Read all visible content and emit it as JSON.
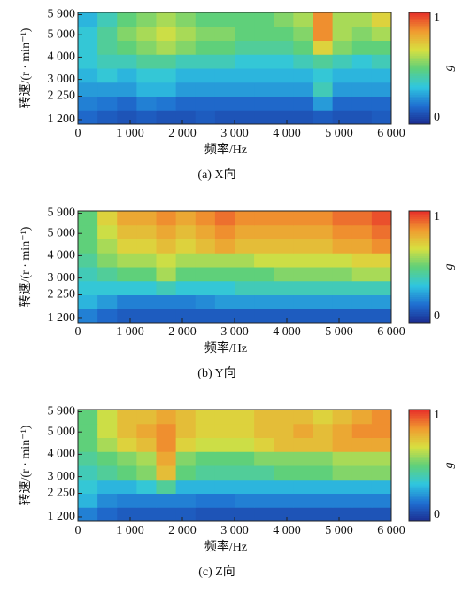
{
  "chart_data": [
    {
      "type": "heatmap",
      "caption": "(a) X向",
      "xlabel": "频率/Hz",
      "ylabel": "转速/(r · min⁻¹)",
      "zlabel": "g",
      "xlim": [
        0,
        6000
      ],
      "xticks": [
        0,
        {
          "value": 1000,
          "label": "1 000"
        },
        {
          "value": 2000,
          "label": "2 000"
        },
        {
          "value": 3000,
          "label": "3 000"
        },
        {
          "value": 4000,
          "label": "4 000"
        },
        {
          "value": 5000,
          "label": "5 000"
        },
        {
          "value": 6000,
          "label": "6 000"
        }
      ],
      "ylim": [
        1000,
        6000
      ],
      "yticks": [
        {
          "value": 1200,
          "label": "1 200"
        },
        {
          "value": 2250,
          "label": "2 250"
        },
        {
          "value": 3000,
          "label": "3 000"
        },
        {
          "value": 4000,
          "label": "4 000"
        },
        {
          "value": 5000,
          "label": "5 000"
        },
        {
          "value": 5900,
          "label": "5 900"
        }
      ],
      "zlim": [
        0,
        1
      ],
      "zticks": [
        0,
        1
      ],
      "colormap": [
        "#1c2b8f",
        "#1f6fd1",
        "#2fc6e0",
        "#5fd07a",
        "#d8e040",
        "#f09a30",
        "#e8302a"
      ],
      "x_edges": [
        0,
        375,
        750,
        1125,
        1500,
        1875,
        2250,
        2625,
        3000,
        3375,
        3750,
        4125,
        4500,
        4875,
        5250,
        5625,
        6000
      ],
      "y_edges": [
        1000,
        1625,
        2250,
        2875,
        3500,
        4125,
        4750,
        5375,
        6000
      ],
      "z": [
        [
          0.15,
          0.12,
          0.1,
          0.12,
          0.1,
          0.1,
          0.12,
          0.1,
          0.1,
          0.1,
          0.1,
          0.1,
          0.12,
          0.1,
          0.1,
          0.12
        ],
        [
          0.2,
          0.18,
          0.15,
          0.2,
          0.18,
          0.15,
          0.15,
          0.15,
          0.15,
          0.15,
          0.15,
          0.15,
          0.25,
          0.15,
          0.15,
          0.15
        ],
        [
          0.25,
          0.25,
          0.25,
          0.3,
          0.3,
          0.25,
          0.25,
          0.25,
          0.25,
          0.25,
          0.25,
          0.25,
          0.4,
          0.25,
          0.25,
          0.25
        ],
        [
          0.3,
          0.35,
          0.3,
          0.35,
          0.35,
          0.3,
          0.3,
          0.3,
          0.3,
          0.3,
          0.3,
          0.3,
          0.35,
          0.3,
          0.3,
          0.3
        ],
        [
          0.35,
          0.4,
          0.4,
          0.45,
          0.45,
          0.4,
          0.4,
          0.4,
          0.35,
          0.35,
          0.35,
          0.4,
          0.45,
          0.4,
          0.35,
          0.4
        ],
        [
          0.35,
          0.45,
          0.5,
          0.55,
          0.6,
          0.55,
          0.5,
          0.5,
          0.45,
          0.45,
          0.45,
          0.5,
          0.7,
          0.55,
          0.5,
          0.5
        ],
        [
          0.35,
          0.45,
          0.55,
          0.6,
          0.65,
          0.6,
          0.55,
          0.55,
          0.5,
          0.5,
          0.5,
          0.55,
          0.85,
          0.6,
          0.55,
          0.6
        ],
        [
          0.3,
          0.4,
          0.5,
          0.55,
          0.6,
          0.55,
          0.5,
          0.5,
          0.5,
          0.5,
          0.55,
          0.6,
          0.85,
          0.6,
          0.6,
          0.7
        ]
      ]
    },
    {
      "type": "heatmap",
      "caption": "(b) Y向",
      "xlabel": "频率/Hz",
      "ylabel": "转速/(r · min⁻¹)",
      "zlabel": "g",
      "xlim": [
        0,
        6000
      ],
      "xticks": [
        0,
        {
          "value": 1000,
          "label": "1 000"
        },
        {
          "value": 2000,
          "label": "2 000"
        },
        {
          "value": 3000,
          "label": "3 000"
        },
        {
          "value": 4000,
          "label": "4 000"
        },
        {
          "value": 5000,
          "label": "5 000"
        },
        {
          "value": 6000,
          "label": "6 000"
        }
      ],
      "ylim": [
        1000,
        6000
      ],
      "yticks": [
        {
          "value": 1200,
          "label": "1 200"
        },
        {
          "value": 2250,
          "label": "2 250"
        },
        {
          "value": 3000,
          "label": "3 000"
        },
        {
          "value": 4000,
          "label": "4 000"
        },
        {
          "value": 5000,
          "label": "5 000"
        },
        {
          "value": 5900,
          "label": "5 900"
        }
      ],
      "zlim": [
        0,
        1
      ],
      "zticks": [
        0,
        1
      ],
      "colormap": [
        "#1c2b8f",
        "#1f6fd1",
        "#2fc6e0",
        "#5fd07a",
        "#d8e040",
        "#f09a30",
        "#e8302a"
      ],
      "x_edges": [
        0,
        375,
        750,
        1125,
        1500,
        1875,
        2250,
        2625,
        3000,
        3375,
        3750,
        4125,
        4500,
        4875,
        5250,
        5625,
        6000
      ],
      "y_edges": [
        1000,
        1625,
        2250,
        2875,
        3500,
        4125,
        4750,
        5375,
        6000
      ],
      "z": [
        [
          0.2,
          0.15,
          0.12,
          0.12,
          0.12,
          0.12,
          0.12,
          0.12,
          0.12,
          0.12,
          0.12,
          0.12,
          0.12,
          0.12,
          0.12,
          0.12
        ],
        [
          0.3,
          0.25,
          0.2,
          0.2,
          0.2,
          0.2,
          0.22,
          0.25,
          0.25,
          0.25,
          0.25,
          0.25,
          0.25,
          0.25,
          0.25,
          0.25
        ],
        [
          0.35,
          0.35,
          0.35,
          0.35,
          0.4,
          0.35,
          0.35,
          0.35,
          0.4,
          0.4,
          0.4,
          0.4,
          0.4,
          0.4,
          0.4,
          0.4
        ],
        [
          0.4,
          0.45,
          0.5,
          0.5,
          0.6,
          0.5,
          0.5,
          0.5,
          0.5,
          0.5,
          0.55,
          0.55,
          0.55,
          0.55,
          0.6,
          0.6
        ],
        [
          0.45,
          0.55,
          0.6,
          0.6,
          0.65,
          0.6,
          0.6,
          0.6,
          0.6,
          0.65,
          0.65,
          0.65,
          0.65,
          0.65,
          0.7,
          0.7
        ],
        [
          0.5,
          0.6,
          0.7,
          0.7,
          0.75,
          0.7,
          0.75,
          0.8,
          0.75,
          0.75,
          0.75,
          0.75,
          0.75,
          0.8,
          0.8,
          0.85
        ],
        [
          0.5,
          0.65,
          0.75,
          0.75,
          0.8,
          0.75,
          0.8,
          0.85,
          0.8,
          0.8,
          0.8,
          0.8,
          0.8,
          0.85,
          0.85,
          0.9
        ],
        [
          0.5,
          0.7,
          0.8,
          0.8,
          0.85,
          0.8,
          0.85,
          0.9,
          0.85,
          0.85,
          0.85,
          0.85,
          0.85,
          0.9,
          0.9,
          0.95
        ]
      ]
    },
    {
      "type": "heatmap",
      "caption": "(c) Z向",
      "xlabel": "频率/Hz",
      "ylabel": "转速/(r · min⁻¹)",
      "zlabel": "g",
      "xlim": [
        0,
        6000
      ],
      "xticks": [
        0,
        {
          "value": 1000,
          "label": "1 000"
        },
        {
          "value": 2000,
          "label": "2 000"
        },
        {
          "value": 3000,
          "label": "3 000"
        },
        {
          "value": 4000,
          "label": "4 000"
        },
        {
          "value": 5000,
          "label": "5 000"
        },
        {
          "value": 6000,
          "label": "6 000"
        }
      ],
      "ylim": [
        1000,
        6000
      ],
      "yticks": [
        {
          "value": 1200,
          "label": "1 200"
        },
        {
          "value": 2250,
          "label": "2 250"
        },
        {
          "value": 3000,
          "label": "3 000"
        },
        {
          "value": 4000,
          "label": "4 000"
        },
        {
          "value": 5000,
          "label": "5 000"
        },
        {
          "value": 5900,
          "label": "5 900"
        }
      ],
      "zlim": [
        0,
        1
      ],
      "zticks": [
        0,
        1
      ],
      "colormap": [
        "#1c2b8f",
        "#1f6fd1",
        "#2fc6e0",
        "#5fd07a",
        "#d8e040",
        "#f09a30",
        "#e8302a"
      ],
      "x_edges": [
        0,
        375,
        750,
        1125,
        1500,
        1875,
        2250,
        2625,
        3000,
        3375,
        3750,
        4125,
        4500,
        4875,
        5250,
        5625,
        6000
      ],
      "y_edges": [
        1000,
        1625,
        2250,
        2875,
        3500,
        4125,
        4750,
        5375,
        6000
      ],
      "z": [
        [
          0.2,
          0.15,
          0.12,
          0.12,
          0.12,
          0.12,
          0.1,
          0.1,
          0.1,
          0.1,
          0.1,
          0.1,
          0.1,
          0.1,
          0.1,
          0.1
        ],
        [
          0.3,
          0.22,
          0.2,
          0.2,
          0.2,
          0.2,
          0.18,
          0.18,
          0.2,
          0.2,
          0.2,
          0.2,
          0.2,
          0.2,
          0.2,
          0.2
        ],
        [
          0.35,
          0.3,
          0.3,
          0.35,
          0.45,
          0.3,
          0.3,
          0.3,
          0.3,
          0.3,
          0.3,
          0.3,
          0.3,
          0.3,
          0.3,
          0.3
        ],
        [
          0.4,
          0.45,
          0.5,
          0.55,
          0.75,
          0.5,
          0.45,
          0.45,
          0.45,
          0.45,
          0.5,
          0.5,
          0.5,
          0.55,
          0.55,
          0.55
        ],
        [
          0.45,
          0.5,
          0.55,
          0.6,
          0.8,
          0.55,
          0.5,
          0.5,
          0.5,
          0.55,
          0.55,
          0.55,
          0.55,
          0.6,
          0.6,
          0.6
        ],
        [
          0.5,
          0.6,
          0.7,
          0.75,
          0.85,
          0.7,
          0.65,
          0.65,
          0.65,
          0.7,
          0.75,
          0.75,
          0.75,
          0.8,
          0.8,
          0.8
        ],
        [
          0.5,
          0.65,
          0.75,
          0.8,
          0.85,
          0.75,
          0.7,
          0.7,
          0.7,
          0.75,
          0.75,
          0.8,
          0.75,
          0.8,
          0.85,
          0.85
        ],
        [
          0.5,
          0.65,
          0.75,
          0.75,
          0.8,
          0.75,
          0.7,
          0.7,
          0.7,
          0.75,
          0.75,
          0.75,
          0.7,
          0.75,
          0.8,
          0.85
        ]
      ]
    }
  ]
}
